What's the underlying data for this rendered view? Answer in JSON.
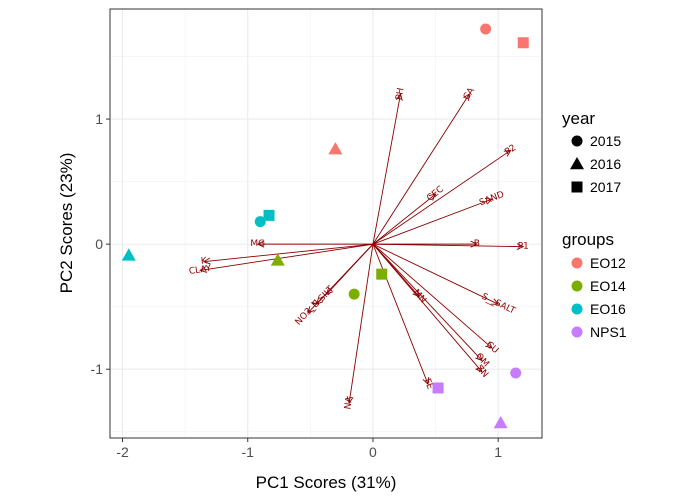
{
  "chart_data": {
    "type": "scatter",
    "xlabel": "PC1 Scores (31%)",
    "ylabel": "PC2 Scores (23%)",
    "xlim": [
      -2.1,
      1.35
    ],
    "ylim": [
      -1.55,
      1.88
    ],
    "x_ticks": [
      -2,
      -1,
      0,
      1
    ],
    "x_tick_labels": [
      "-2",
      "-1",
      "0",
      "1"
    ],
    "y_ticks": [
      -1,
      0,
      1
    ],
    "y_tick_labels": [
      "-1",
      "0",
      "1"
    ],
    "grid": true,
    "legend_placement": "right",
    "vector_color": "#8b0000",
    "legends": {
      "shape": {
        "title": "year",
        "items": [
          {
            "label": "2015",
            "shape": "circle"
          },
          {
            "label": "2016",
            "shape": "triangle"
          },
          {
            "label": "2017",
            "shape": "square"
          }
        ]
      },
      "color": {
        "title": "groups",
        "items": [
          {
            "label": "EO12",
            "color": "#f8766d"
          },
          {
            "label": "EO14",
            "color": "#7cae00"
          },
          {
            "label": "EO16",
            "color": "#00bfc4"
          },
          {
            "label": "NPS1",
            "color": "#c77cff"
          }
        ]
      }
    },
    "points": [
      {
        "x": 0.9,
        "y": 1.72,
        "group": "EO12",
        "year": "2015"
      },
      {
        "x": -0.3,
        "y": 0.76,
        "group": "EO12",
        "year": "2016"
      },
      {
        "x": 1.2,
        "y": 1.61,
        "group": "EO12",
        "year": "2017"
      },
      {
        "x": -0.15,
        "y": -0.4,
        "group": "EO14",
        "year": "2015"
      },
      {
        "x": -0.76,
        "y": -0.13,
        "group": "EO14",
        "year": "2016"
      },
      {
        "x": 0.07,
        "y": -0.24,
        "group": "EO14",
        "year": "2017"
      },
      {
        "x": -0.9,
        "y": 0.18,
        "group": "EO16",
        "year": "2015"
      },
      {
        "x": -1.95,
        "y": -0.09,
        "group": "EO16",
        "year": "2016"
      },
      {
        "x": -0.83,
        "y": 0.23,
        "group": "EO16",
        "year": "2017"
      },
      {
        "x": 1.14,
        "y": -1.03,
        "group": "NPS1",
        "year": "2015"
      },
      {
        "x": 1.02,
        "y": -1.43,
        "group": "NPS1",
        "year": "2016"
      },
      {
        "x": 0.52,
        "y": -1.15,
        "group": "NPS1",
        "year": "2017"
      }
    ],
    "vectors": [
      {
        "label": "PH",
        "x": 0.22,
        "y": 1.2
      },
      {
        "label": "CA",
        "x": 0.77,
        "y": 1.2
      },
      {
        "label": "P2",
        "x": 1.1,
        "y": 0.75
      },
      {
        "label": "SAND",
        "x": 0.95,
        "y": 0.36
      },
      {
        "label": "CEC",
        "x": 0.5,
        "y": 0.4
      },
      {
        "label": "B",
        "x": 0.83,
        "y": 0.0
      },
      {
        "label": "P1",
        "x": 1.2,
        "y": -0.02
      },
      {
        "label": "S__SALT",
        "x": 1.0,
        "y": -0.48
      },
      {
        "label": "CU",
        "x": 0.95,
        "y": -0.83
      },
      {
        "label": "OM",
        "x": 0.87,
        "y": -0.93
      },
      {
        "label": "ZN",
        "x": 0.87,
        "y": -1.02
      },
      {
        "label": "MN",
        "x": 0.37,
        "y": -0.42
      },
      {
        "label": "FE",
        "x": 0.44,
        "y": -1.12
      },
      {
        "label": "NA",
        "x": -0.19,
        "y": -1.27
      },
      {
        "label": "MG",
        "x": -0.92,
        "y": 0.0
      },
      {
        "label": "K",
        "x": -1.35,
        "y": -0.14
      },
      {
        "label": "CLAY",
        "x": -1.38,
        "y": -0.21
      },
      {
        "label": "NO3_N",
        "x": -0.52,
        "y": -0.55
      },
      {
        "label": "SILT",
        "x": -0.37,
        "y": -0.4
      },
      {
        "label": "S",
        "x": -0.45,
        "y": -0.48
      }
    ]
  }
}
